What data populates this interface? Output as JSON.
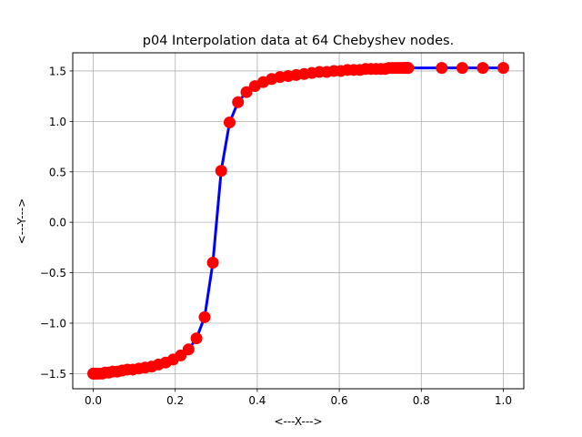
{
  "chart_data": {
    "type": "line",
    "title": "p04 Interpolation data at 64 Chebyshev nodes.",
    "xlabel": "<---X--->",
    "ylabel": "<---Y--->",
    "xlim": [
      -0.05,
      1.05
    ],
    "ylim": [
      -1.65,
      1.68
    ],
    "xticks": [
      0.0,
      0.2,
      0.4,
      0.6,
      0.8,
      1.0
    ],
    "xtick_labels": [
      "0.0",
      "0.2",
      "0.4",
      "0.6",
      "0.8",
      "1.0"
    ],
    "yticks": [
      -1.5,
      -1.0,
      -0.5,
      0.0,
      0.5,
      1.0,
      1.5
    ],
    "ytick_labels": [
      "−1.5",
      "−1.0",
      "−0.5",
      "0.0",
      "0.5",
      "1.0",
      "1.5"
    ],
    "grid": true,
    "series": [
      {
        "line_color": "#0000ff",
        "marker_color": "#ff0000",
        "x": [
          0.0,
          0.0006,
          0.0024,
          0.0054,
          0.0096,
          0.015,
          0.0215,
          0.0291,
          0.0378,
          0.0476,
          0.0584,
          0.0702,
          0.0829,
          0.0966,
          0.1111,
          0.1264,
          0.1425,
          0.1593,
          0.1767,
          0.1948,
          0.2133,
          0.2324,
          0.2518,
          0.2716,
          0.2917,
          0.312,
          0.3325,
          0.353,
          0.3736,
          0.3942,
          0.4147,
          0.4351,
          0.4553,
          0.4753,
          0.4949,
          0.5143,
          0.5332,
          0.5516,
          0.5696,
          0.587,
          0.6038,
          0.62,
          0.6354,
          0.6502,
          0.6641,
          0.6773,
          0.6897,
          0.7012,
          0.7118,
          0.7215,
          0.7303,
          0.7382,
          0.7451,
          0.7511,
          0.7562,
          0.7604,
          0.7636,
          0.766,
          0.7675,
          0.768,
          0.85,
          0.9,
          0.95,
          1.0
        ],
        "y": [
          -1.5,
          -1.5,
          -1.5,
          -1.5,
          -1.5,
          -1.5,
          -1.5,
          -1.49,
          -1.49,
          -1.48,
          -1.48,
          -1.47,
          -1.46,
          -1.46,
          -1.45,
          -1.44,
          -1.43,
          -1.41,
          -1.39,
          -1.36,
          -1.32,
          -1.26,
          -1.15,
          -0.94,
          -0.4,
          0.51,
          0.99,
          1.19,
          1.29,
          1.35,
          1.39,
          1.42,
          1.44,
          1.45,
          1.46,
          1.47,
          1.48,
          1.49,
          1.49,
          1.5,
          1.5,
          1.51,
          1.51,
          1.51,
          1.52,
          1.52,
          1.52,
          1.52,
          1.52,
          1.53,
          1.53,
          1.53,
          1.53,
          1.53,
          1.53,
          1.53,
          1.53,
          1.53,
          1.53,
          1.53,
          1.53,
          1.53,
          1.53,
          1.53
        ]
      }
    ]
  }
}
